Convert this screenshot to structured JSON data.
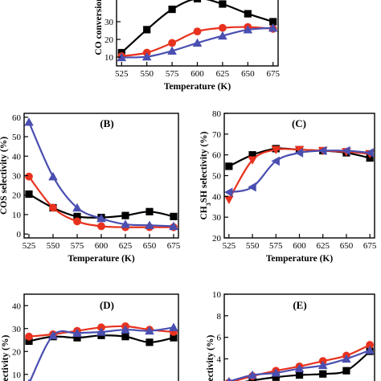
{
  "chart_data": [
    {
      "panel": "A",
      "type": "line",
      "panel_label": "",
      "xlabel": "Temperature (K)",
      "ylabel": "CO conversion",
      "xlim": [
        520,
        680
      ],
      "ylim": [
        5,
        45
      ],
      "x_ticks": [
        525,
        550,
        575,
        600,
        625,
        650,
        675
      ],
      "y_ticks": [
        10,
        20,
        30
      ],
      "x": [
        525,
        550,
        575,
        600,
        625,
        650,
        675
      ],
      "grid": false,
      "series": [
        {
          "color": "#000000",
          "marker": "square",
          "values": [
            12.5,
            25.5,
            37,
            43,
            40,
            34.5,
            30
          ]
        },
        {
          "color": "#e8321e",
          "marker": "circle",
          "values": [
            10.5,
            12.5,
            18,
            24.5,
            26.5,
            27,
            26
          ]
        },
        {
          "color": "#4a4fb0",
          "marker": "triangle-up",
          "values": [
            9.8,
            10.2,
            13.5,
            18,
            22,
            25.5,
            26.5
          ]
        }
      ]
    },
    {
      "panel": "B",
      "type": "line",
      "panel_label": "(B)",
      "xlabel": "Temperature (K)",
      "ylabel": "COS selectivity (%)",
      "xlim": [
        520,
        680
      ],
      "ylim": [
        -2,
        62
      ],
      "x_ticks": [
        525,
        550,
        575,
        600,
        625,
        650,
        675
      ],
      "y_ticks": [
        0,
        10,
        20,
        30,
        40,
        50,
        60
      ],
      "x": [
        525,
        550,
        575,
        600,
        625,
        650,
        675
      ],
      "grid": false,
      "series": [
        {
          "color": "#000000",
          "marker": "square",
          "values": [
            20.5,
            13.5,
            9,
            8.5,
            9.5,
            11.5,
            9
          ]
        },
        {
          "color": "#e8321e",
          "marker": "circle",
          "values": [
            29.5,
            13.5,
            6.5,
            4,
            3.5,
            3.5,
            3.5
          ]
        },
        {
          "color": "#4a4fb0",
          "marker": "triangle-up",
          "values": [
            57.5,
            29.5,
            13.5,
            8,
            5,
            4.5,
            4
          ]
        }
      ]
    },
    {
      "panel": "C",
      "type": "line",
      "panel_label": "(C)",
      "xlabel": "Temperature (K)",
      "ylabel": "CH3SH selectivity (%)",
      "xlim": [
        520,
        680
      ],
      "ylim": [
        20,
        80
      ],
      "x_ticks": [
        525,
        550,
        575,
        600,
        625,
        650,
        675
      ],
      "y_ticks": [
        20,
        30,
        40,
        50,
        60,
        70,
        80
      ],
      "x": [
        525,
        550,
        575,
        600,
        625,
        650,
        675
      ],
      "grid": false,
      "series": [
        {
          "color": "#000000",
          "marker": "square",
          "values": [
            54.5,
            60,
            63,
            62.5,
            62,
            61,
            58.5
          ]
        },
        {
          "color": "#e8321e",
          "marker": "triangle-down",
          "values": [
            38.5,
            57.5,
            62.5,
            62.5,
            62,
            61.5,
            60.5
          ]
        },
        {
          "color": "#4a4fb0",
          "marker": "triangle-left",
          "values": [
            42,
            44.5,
            57,
            61,
            62,
            62,
            61
          ]
        }
      ]
    },
    {
      "panel": "D",
      "type": "line",
      "panel_label": "(D)",
      "xlabel": "",
      "ylabel": "selectivity (%)",
      "xlim": [
        520,
        680
      ],
      "ylim": [
        5,
        45
      ],
      "x_ticks": [],
      "y_ticks": [
        10,
        20,
        30,
        40
      ],
      "x": [
        525,
        550,
        575,
        600,
        625,
        650,
        675
      ],
      "grid": false,
      "series": [
        {
          "color": "#000000",
          "marker": "square",
          "values": [
            24.5,
            26.5,
            26,
            27,
            26.5,
            24,
            26
          ]
        },
        {
          "color": "#e8321e",
          "marker": "circle",
          "values": [
            26.5,
            27.5,
            29,
            30.5,
            31,
            29.5,
            28.5
          ]
        },
        {
          "color": "#4a4fb0",
          "marker": "triangle-up",
          "values": [
            6,
            27,
            28,
            28.5,
            29.5,
            29,
            30.5
          ]
        }
      ]
    },
    {
      "panel": "E",
      "type": "line",
      "panel_label": "(E)",
      "xlabel": "",
      "ylabel": "selectivity (%)",
      "xlim": [
        520,
        680
      ],
      "ylim": [
        1.5,
        10
      ],
      "x_ticks": [],
      "y_ticks": [
        4,
        6,
        8,
        10
      ],
      "x": [
        525,
        550,
        575,
        600,
        625,
        650,
        675
      ],
      "grid": false,
      "series": [
        {
          "color": "#000000",
          "marker": "square",
          "values": [
            1.6,
            2,
            2.3,
            2.5,
            2.6,
            2.9,
            4.7
          ]
        },
        {
          "color": "#e8321e",
          "marker": "circle",
          "values": [
            1.8,
            2.4,
            2.9,
            3.3,
            3.8,
            4.3,
            5.3
          ]
        },
        {
          "color": "#4a4fb0",
          "marker": "triangle-up",
          "values": [
            1.9,
            2.5,
            2.7,
            3.1,
            3.4,
            4.0,
            4.8
          ]
        }
      ]
    }
  ]
}
